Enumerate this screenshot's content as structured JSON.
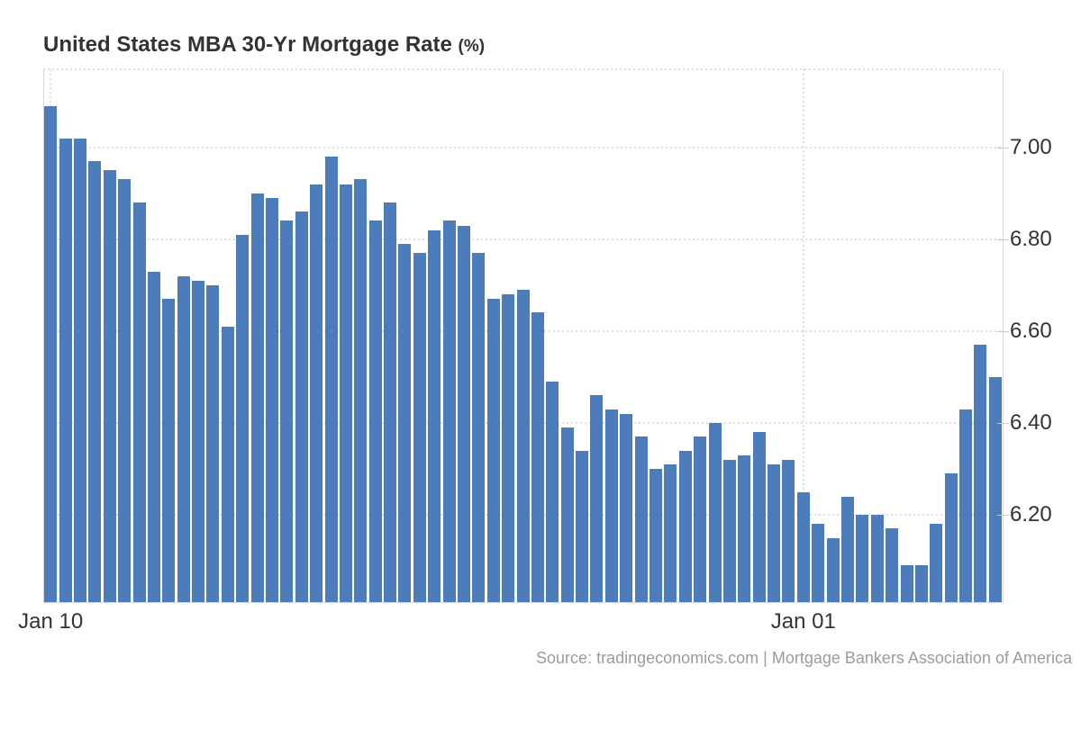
{
  "chart_data": {
    "type": "bar",
    "title": "United States MBA 30-Yr Mortgage Rate",
    "title_suffix": "(%)",
    "unit": "%",
    "values": [
      7.09,
      7.02,
      7.02,
      6.97,
      6.95,
      6.93,
      6.88,
      6.73,
      6.67,
      6.72,
      6.71,
      6.7,
      6.61,
      6.81,
      6.9,
      6.89,
      6.84,
      6.86,
      6.92,
      6.98,
      6.92,
      6.93,
      6.84,
      6.88,
      6.79,
      6.77,
      6.82,
      6.84,
      6.83,
      6.77,
      6.67,
      6.68,
      6.69,
      6.64,
      6.49,
      6.39,
      6.34,
      6.46,
      6.43,
      6.42,
      6.37,
      6.3,
      6.31,
      6.34,
      6.37,
      6.4,
      6.32,
      6.33,
      6.38,
      6.31,
      6.32,
      6.25,
      6.18,
      6.15,
      6.24,
      6.2,
      6.2,
      6.17,
      6.09,
      6.09,
      6.18,
      6.29,
      6.43,
      6.57,
      6.5
    ],
    "y_ticks": [
      {
        "value": 7.0,
        "label": "7.00"
      },
      {
        "value": 6.8,
        "label": "6.80"
      },
      {
        "value": 6.6,
        "label": "6.60"
      },
      {
        "value": 6.4,
        "label": "6.40"
      },
      {
        "value": 6.2,
        "label": "6.20"
      }
    ],
    "x_ticks": [
      {
        "label": "Jan 10",
        "bar_index": 0
      },
      {
        "label": "Jan 01",
        "bar_index": 51
      }
    ],
    "ylim": [
      6.01,
      7.17
    ],
    "grid": true,
    "legend": "none",
    "source": "Source: tradingeconomics.com | Mortgage Bankers Association of America",
    "colors": {
      "bar": "#4d7cba",
      "grid": "#dedede",
      "axis_line": "#d6d6d6",
      "tick": "#c9c9c9",
      "title_text": "#333333",
      "axis_text": "#333333",
      "source_text": "#9b9b9b",
      "background": "#ffffff"
    }
  }
}
